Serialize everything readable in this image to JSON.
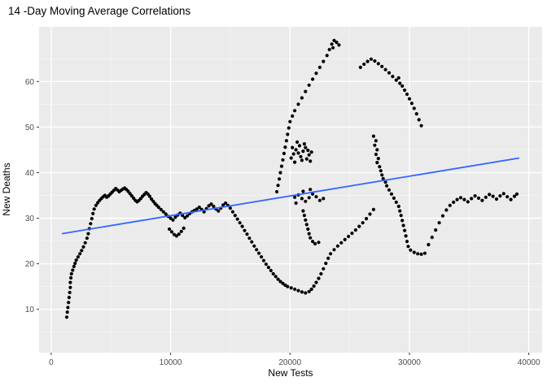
{
  "chart_data": {
    "type": "scatter",
    "title": "14 -Day Moving Average Correlations",
    "xlabel": "New Tests",
    "ylabel": "New Deaths",
    "x_ticks": [
      0,
      10000,
      20000,
      30000,
      40000
    ],
    "y_ticks": [
      10,
      20,
      30,
      40,
      50,
      60
    ],
    "x_minor": [
      5000,
      15000,
      25000,
      35000
    ],
    "y_minor": [
      5,
      15,
      25,
      35,
      45,
      55,
      65
    ],
    "xlim": [
      -1015,
      41115
    ],
    "ylim": [
      0.5,
      72
    ],
    "grid": true,
    "legend": "none",
    "colors": {
      "panel_bg": "#EBEBEB",
      "grid_major": "#FFFFFF",
      "grid_minor": "#F5F5F5",
      "point": "#000000",
      "tick": "#333333",
      "tick_label": "#4D4D4D",
      "title": "#000000"
    },
    "trend_line": {
      "x1": 900,
      "y1": 26.6,
      "x2": 39200,
      "y2": 43.2,
      "color": "#3366FF"
    },
    "points": {
      "x": [
        1300,
        1350,
        1400,
        1450,
        1500,
        1550,
        1600,
        1600,
        1650,
        1700,
        1800,
        1900,
        2000,
        2100,
        2250,
        2400,
        2550,
        2700,
        2850,
        3000,
        3100,
        3200,
        3300,
        3400,
        3500,
        3600,
        3750,
        3900,
        4050,
        4200,
        4350,
        4500,
        4650,
        4800,
        4950,
        5100,
        5250,
        5400,
        5550,
        5700,
        5850,
        6000,
        6150,
        6300,
        6450,
        6600,
        6750,
        6900,
        7050,
        7200,
        7350,
        7500,
        7650,
        7800,
        7950,
        8100,
        8250,
        8400,
        8550,
        8700,
        8850,
        9000,
        9200,
        9400,
        9600,
        9800,
        10000,
        10200,
        9900,
        10100,
        10300,
        10500,
        10700,
        10900,
        11100,
        10400,
        10600,
        10800,
        11000,
        11200,
        11400,
        11600,
        11800,
        12000,
        12200,
        12400,
        12600,
        12800,
        13000,
        13200,
        13400,
        13600,
        13800,
        14000,
        14200,
        14400,
        14600,
        14800,
        15000,
        15200,
        15400,
        15600,
        15800,
        16000,
        16200,
        16400,
        16600,
        16800,
        17000,
        17200,
        17400,
        17600,
        17800,
        18000,
        18200,
        18400,
        18600,
        18800,
        19000,
        19200,
        19400,
        19600,
        19800,
        20100,
        20400,
        20700,
        21000,
        21300,
        21600,
        21800,
        22000,
        22200,
        22400,
        22600,
        22800,
        23000,
        23200,
        23400,
        23700,
        24000,
        24300,
        24600,
        24900,
        25200,
        25500,
        25800,
        26100,
        26400,
        26700,
        27000,
        18900,
        19000,
        19100,
        19200,
        19300,
        19400,
        19500,
        19600,
        19700,
        19800,
        19900,
        20000,
        20200,
        20400,
        20700,
        21000,
        21300,
        21600,
        21900,
        22200,
        22500,
        22800,
        23100,
        23300,
        23500,
        23700,
        23900,
        24100,
        23600,
        25900,
        26200,
        26500,
        26800,
        27100,
        27400,
        27700,
        28000,
        28300,
        28600,
        28900,
        29200,
        29100,
        29400,
        29600,
        29800,
        30000,
        30200,
        30400,
        30600,
        30800,
        31000,
        27000,
        27200,
        27100,
        27300,
        27200,
        27400,
        27300,
        27500,
        27600,
        27700,
        27800,
        28000,
        28100,
        28300,
        28500,
        28700,
        28900,
        29100,
        29200,
        29300,
        29400,
        29500,
        29600,
        29700,
        29800,
        29900,
        30100,
        30400,
        30700,
        31000,
        31300,
        31600,
        31900,
        32200,
        32500,
        32800,
        33100,
        33400,
        33700,
        34000,
        34300,
        34600,
        34900,
        35200,
        35500,
        35800,
        36100,
        36400,
        36700,
        37000,
        37300,
        37600,
        37900,
        38200,
        38500,
        38800,
        39000,
        20100,
        20300,
        20500,
        20700,
        20900,
        21100,
        21300,
        21500,
        21000,
        20800,
        21200,
        20600,
        20400,
        21600,
        21800,
        21400,
        20200,
        21700,
        20400,
        20700,
        21000,
        21300,
        21600,
        21900,
        22200,
        22500,
        22800,
        21100,
        21700,
        20500,
        21100,
        21200,
        21300,
        21400,
        21500,
        21600,
        21700,
        21900,
        22100,
        22400
      ],
      "y": [
        8.3,
        9.4,
        10.4,
        11.5,
        12.6,
        13.7,
        14.8,
        15.9,
        16.9,
        17.8,
        18.6,
        19.4,
        20.1,
        20.8,
        21.5,
        22.2,
        22.9,
        23.7,
        24.6,
        25.6,
        26.6,
        27.7,
        28.8,
        29.9,
        31,
        32,
        32.8,
        33.4,
        33.9,
        34.3,
        34.7,
        35,
        34.6,
        34.9,
        35.3,
        35.7,
        36.1,
        36.5,
        36.2,
        35.8,
        36.1,
        36.4,
        36.6,
        36.3,
        35.9,
        35.4,
        34.9,
        34.4,
        33.9,
        33.6,
        33.9,
        34.3,
        34.8,
        35.2,
        35.6,
        35.3,
        34.8,
        34.2,
        33.7,
        33.2,
        32.8,
        32.4,
        31.9,
        31.4,
        30.9,
        30.4,
        30,
        29.6,
        27.6,
        27,
        26.4,
        26.1,
        26.5,
        27.1,
        27.8,
        30.2,
        30.7,
        31.1,
        30.6,
        30.1,
        30.5,
        31,
        31.4,
        31.7,
        32,
        32.4,
        31.9,
        31.4,
        32.1,
        32.7,
        33.1,
        32.6,
        32,
        31.6,
        32.2,
        32.9,
        33.3,
        32.8,
        32.2,
        31.4,
        30.6,
        29.8,
        29,
        28.2,
        27.3,
        26.5,
        25.6,
        24.8,
        23.9,
        23.1,
        22.3,
        21.5,
        20.7,
        19.9,
        19.2,
        18.5,
        17.8,
        17.2,
        16.6,
        16.1,
        15.7,
        15.3,
        15,
        14.7,
        14.4,
        14.1,
        13.8,
        13.6,
        13.9,
        14.4,
        15.1,
        15.9,
        16.8,
        17.8,
        18.9,
        20.1,
        21.2,
        22.2,
        23.1,
        23.9,
        24.6,
        25.3,
        26,
        26.7,
        27.4,
        28.2,
        29,
        29.9,
        30.9,
        31.9,
        35.8,
        37.2,
        38.6,
        40,
        41.4,
        42.8,
        44.2,
        45.6,
        47,
        48.4,
        49.8,
        51.2,
        52.4,
        53.6,
        55,
        56.4,
        57.8,
        59.2,
        60.5,
        61.8,
        63.1,
        64.4,
        65.7,
        67,
        68.2,
        69,
        68.6,
        68,
        67.4,
        63.1,
        63.8,
        64.4,
        64.9,
        64.5,
        63.9,
        63.3,
        62.6,
        61.9,
        61.1,
        60.3,
        59.6,
        60.8,
        59,
        58.1,
        57.2,
        56.2,
        55.2,
        54.1,
        52.9,
        51.6,
        50.3,
        48,
        47,
        46,
        45,
        44,
        43.1,
        42.2,
        41.3,
        40.4,
        39.5,
        38.7,
        37.9,
        37.1,
        36.2,
        35.3,
        34.4,
        33.5,
        32.6,
        31.6,
        30.6,
        29.5,
        28.4,
        27.3,
        26.1,
        24.9,
        23.8,
        23,
        22.5,
        22.2,
        22.1,
        22.3,
        24.2,
        25.8,
        27.4,
        29,
        30.5,
        31.8,
        32.8,
        33.5,
        34.1,
        34.5,
        34.1,
        33.6,
        34.3,
        34.9,
        34.4,
        33.9,
        34.6,
        35.2,
        34.8,
        34.2,
        34.9,
        35.4,
        34.7,
        34.1,
        34.8,
        35.3,
        43.2,
        44.1,
        45,
        44.3,
        43.5,
        44.7,
        45.5,
        44.9,
        42.7,
        45.9,
        46.3,
        46.7,
        42.3,
        43.9,
        44.5,
        43,
        45.5,
        42.5,
        34.6,
        35.1,
        34.3,
        33.7,
        34.5,
        35.3,
        34.7,
        33.9,
        34.3,
        35.9,
        36.3,
        33.3,
        31.6,
        30.6,
        29.6,
        28.6,
        27.6,
        26.6,
        25.7,
        24.9,
        24.4,
        24.7
      ]
    }
  }
}
